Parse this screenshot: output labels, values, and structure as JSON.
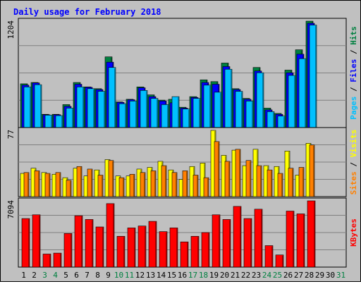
{
  "chart_data": {
    "type": "bar",
    "title": "Daily usage for February 2018",
    "categories": [
      "1",
      "2",
      "3",
      "4",
      "5",
      "6",
      "7",
      "8",
      "9",
      "10",
      "11",
      "12",
      "13",
      "14",
      "15",
      "16",
      "17",
      "18",
      "19",
      "20",
      "21",
      "22",
      "23",
      "24",
      "25",
      "26",
      "27",
      "28",
      "29",
      "30",
      "31"
    ],
    "weekend_days": [
      3,
      4,
      10,
      11,
      17,
      18,
      24,
      25,
      31
    ],
    "panels": [
      {
        "id": "top",
        "max_label": "1204",
        "ymax": 1204,
        "axis_label_parts": [
          {
            "text": "Pages",
            "color": "#00c0ff"
          },
          {
            "text": " / ",
            "color": "#000000"
          },
          {
            "text": "Files",
            "color": "#0000ff"
          },
          {
            "text": " / ",
            "color": "#000000"
          },
          {
            "text": "Hits",
            "color": "#008040"
          }
        ],
        "series": [
          {
            "name": "Hits",
            "color": "#008040",
            "values": [
              495,
              510,
              150,
              150,
              260,
              510,
              460,
              440,
              800,
              290,
              320,
              460,
              370,
              310,
              320,
              230,
              350,
              540,
              520,
              730,
              440,
              330,
              680,
              220,
              160,
              650,
              880,
              1204
            ]
          },
          {
            "name": "Files",
            "color": "#0000ff",
            "values": [
              480,
              505,
              145,
              145,
              240,
              490,
              455,
              430,
              740,
              285,
              315,
              450,
              350,
              300,
              280,
              220,
              340,
              510,
              490,
              690,
              430,
              320,
              640,
              200,
              150,
              620,
              830,
              1180
            ]
          },
          {
            "name": "Pages",
            "color": "#00c0ff",
            "values": [
              460,
              485,
              140,
              135,
              220,
              460,
              440,
              410,
              680,
              270,
              300,
              420,
              330,
              260,
              350,
              210,
              330,
              480,
              400,
              660,
              410,
              300,
              620,
              180,
              130,
              590,
              780,
              1160
            ]
          }
        ]
      },
      {
        "id": "middle",
        "max_label": "77",
        "ymax": 77,
        "axis_label_parts": [
          {
            "text": "Sites",
            "color": "#ff8000"
          },
          {
            "text": " / ",
            "color": "#000000"
          },
          {
            "text": "Visits",
            "color": "#ffff00"
          }
        ],
        "series": [
          {
            "name": "Visits",
            "color": "#ffff00",
            "values": [
              27,
              33,
              28,
              26,
              22,
              33,
              24,
              31,
              43,
              24,
              24,
              32,
              34,
              41,
              31,
              20,
              35,
              39,
              77,
              48,
              54,
              36,
              55,
              36,
              35,
              53,
              25,
              62
            ]
          },
          {
            "name": "Sites",
            "color": "#ff8000",
            "values": [
              28,
              30,
              27,
              28,
              19,
              35,
              32,
              25,
              42,
              22,
              26,
              28,
              30,
              36,
              28,
              30,
              25,
              22,
              64,
              41,
              55,
              42,
              36,
              31,
              27,
              33,
              34,
              60
            ]
          }
        ]
      },
      {
        "id": "bottom",
        "max_label": "7094",
        "ymax": 7094,
        "axis_label_parts": [
          {
            "text": "KBytes",
            "color": "#ff0000"
          }
        ],
        "series": [
          {
            "name": "KBytes",
            "color": "#ff0000",
            "values": [
              5200,
              5600,
              1400,
              1500,
              3600,
              5500,
              5100,
              4300,
              6800,
              3300,
              4200,
              4400,
              4900,
              3800,
              4200,
              2700,
              3300,
              3700,
              5600,
              5100,
              6500,
              5200,
              6200,
              2300,
              1300,
              6000,
              5700,
              7094
            ]
          }
        ]
      }
    ]
  }
}
